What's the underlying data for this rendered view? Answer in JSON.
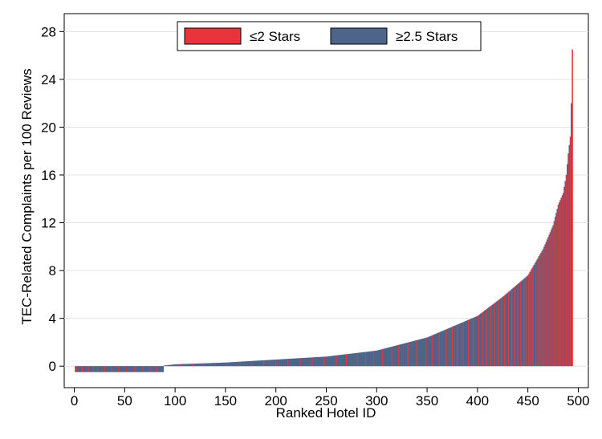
{
  "chart_data": {
    "type": "bar",
    "title": "",
    "xlabel": "Ranked Hotel ID",
    "ylabel": "TEC-Related Complaints per 100 Reviews",
    "xlim": [
      -10,
      510
    ],
    "ylim": [
      -1.8,
      29.5
    ],
    "x_ticks": [
      0,
      50,
      100,
      150,
      200,
      250,
      300,
      350,
      400,
      450,
      500
    ],
    "y_ticks": [
      0,
      4,
      8,
      12,
      16,
      20,
      24,
      28
    ],
    "grid": true,
    "legend_position": "top-center",
    "series": [
      {
        "name": "≤2 Stars",
        "color": "#e8343a"
      },
      {
        "name": "≥2.5 Stars",
        "color": "#4d6588"
      }
    ],
    "curve": {
      "description_points_x": [
        1,
        88,
        89,
        100,
        150,
        200,
        250,
        300,
        350,
        375,
        400,
        425,
        450,
        465,
        475,
        480,
        485,
        488,
        490,
        492,
        493,
        494
      ],
      "description_points_y": [
        -0.5,
        -0.5,
        0.05,
        0.15,
        0.3,
        0.55,
        0.8,
        1.3,
        2.4,
        3.3,
        4.2,
        5.8,
        7.6,
        9.8,
        11.8,
        13.5,
        14.5,
        16.0,
        17.8,
        19.2,
        22.0,
        26.5
      ]
    },
    "n_hotels": 494,
    "red_hotel_ids": [
      2,
      8,
      14,
      19,
      23,
      30,
      37,
      44,
      52,
      60,
      68,
      75,
      82,
      92,
      105,
      117,
      128,
      140,
      152,
      164,
      176,
      188,
      200,
      212,
      224,
      236,
      248,
      260,
      270,
      281,
      289,
      297,
      306,
      315,
      322,
      331,
      340,
      349,
      355,
      362,
      369,
      375,
      380,
      386,
      391,
      396,
      401,
      405,
      409,
      413,
      417,
      421,
      424,
      427,
      431,
      434,
      437,
      440,
      443,
      446,
      448,
      451,
      453,
      455,
      458,
      460,
      462,
      464,
      466,
      468,
      470,
      472,
      474,
      476,
      478,
      480,
      482,
      484,
      486,
      488,
      490,
      492,
      494
    ]
  }
}
